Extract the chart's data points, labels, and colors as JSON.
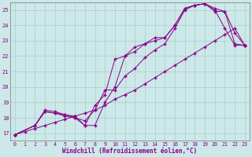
{
  "xlabel": "Windchill (Refroidissement éolien,°C)",
  "xlim": [
    -0.5,
    23.5
  ],
  "ylim": [
    16.5,
    25.5
  ],
  "yticks": [
    17,
    18,
    19,
    20,
    21,
    22,
    23,
    24,
    25
  ],
  "xticks": [
    0,
    1,
    2,
    3,
    4,
    5,
    6,
    7,
    8,
    9,
    10,
    11,
    12,
    13,
    14,
    15,
    16,
    17,
    18,
    19,
    20,
    21,
    22,
    23
  ],
  "line_color": "#880088",
  "bg_color": "#cce8e8",
  "grid_color": "#aacccc",
  "lines": [
    {
      "x": [
        0,
        1,
        2,
        3,
        4,
        5,
        6,
        7,
        8,
        9,
        10,
        11,
        12,
        13,
        14,
        15,
        16,
        17,
        18,
        19,
        20,
        21,
        22,
        23
      ],
      "y": [
        16.9,
        17.1,
        17.3,
        17.5,
        17.7,
        17.9,
        18.1,
        18.3,
        18.5,
        18.8,
        19.2,
        19.5,
        19.8,
        20.2,
        20.6,
        21.0,
        21.4,
        21.8,
        22.2,
        22.6,
        23.0,
        23.4,
        23.8,
        22.7
      ]
    },
    {
      "x": [
        0,
        2,
        3,
        4,
        5,
        6,
        7,
        8,
        9,
        10,
        11,
        12,
        13,
        14,
        15,
        16,
        17,
        18,
        19,
        20,
        21,
        22,
        23
      ],
      "y": [
        16.9,
        17.5,
        18.5,
        18.4,
        18.2,
        18.1,
        17.5,
        17.5,
        19.0,
        20.0,
        22.0,
        22.3,
        22.8,
        23.0,
        23.2,
        24.0,
        25.1,
        25.3,
        25.4,
        25.1,
        24.9,
        22.8,
        22.7
      ]
    },
    {
      "x": [
        0,
        2,
        3,
        4,
        5,
        6,
        7,
        8,
        9,
        10,
        11,
        12,
        13,
        14,
        15,
        16,
        17,
        18,
        19,
        20,
        21,
        22,
        23
      ],
      "y": [
        16.9,
        17.5,
        18.4,
        18.3,
        18.2,
        18.0,
        17.8,
        18.5,
        19.8,
        19.8,
        20.7,
        21.2,
        21.9,
        22.4,
        22.8,
        23.8,
        25.0,
        25.3,
        25.4,
        24.9,
        24.9,
        23.5,
        22.7
      ]
    },
    {
      "x": [
        0,
        2,
        3,
        4,
        5,
        6,
        7,
        8,
        9,
        10,
        11,
        12,
        13,
        14,
        15,
        16,
        17,
        18,
        19,
        20,
        21,
        22,
        23
      ],
      "y": [
        16.9,
        17.5,
        18.4,
        18.3,
        18.1,
        18.0,
        17.5,
        18.8,
        19.5,
        21.8,
        22.0,
        22.6,
        22.8,
        23.2,
        23.2,
        24.0,
        25.1,
        25.3,
        25.4,
        25.0,
        23.8,
        22.7,
        22.7
      ]
    }
  ]
}
